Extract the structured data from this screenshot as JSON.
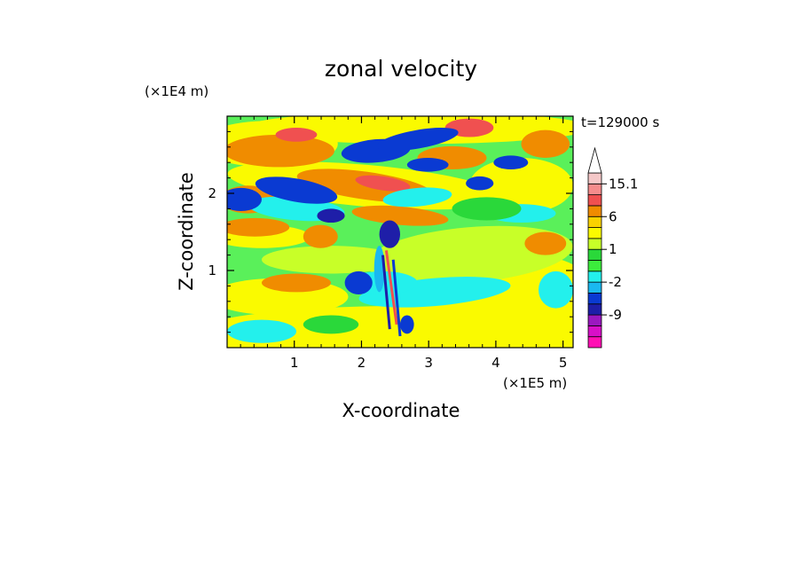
{
  "chart_data": {
    "type": "heatmap",
    "title": "zonal velocity",
    "xlabel": "X-coordinate",
    "ylabel": "Z-coordinate",
    "x_unit": "(×1E5 m)",
    "y_unit": "(×1E4 m)",
    "time_label": "t=129000 s",
    "xlim": [
      0,
      5.15
    ],
    "ylim": [
      0,
      3.0
    ],
    "x_ticks": [
      "1",
      "2",
      "3",
      "4",
      "5"
    ],
    "y_ticks": [
      "1",
      "2"
    ],
    "colorbar": {
      "labels": [
        "15.1",
        "6",
        "1",
        "-2",
        "-9"
      ],
      "label_values": [
        15.1,
        6,
        1,
        -2,
        -9
      ],
      "levels": [
        -15,
        -12,
        -9,
        -6,
        -3,
        -2,
        -1,
        0,
        1,
        2,
        3,
        6,
        9,
        12,
        15.1
      ],
      "colors": [
        "#ff0fb4",
        "#d80fc8",
        "#9b18c0",
        "#1e1ea8",
        "#0a3ad2",
        "#1ab8f0",
        "#23f0ec",
        "#3cec3c",
        "#2ad83a",
        "#c8ff28",
        "#fafa00",
        "#fad200",
        "#f08c00",
        "#f05050",
        "#f58c8c",
        "#f5c8c8"
      ],
      "extend": "max"
    },
    "grid": false
  }
}
